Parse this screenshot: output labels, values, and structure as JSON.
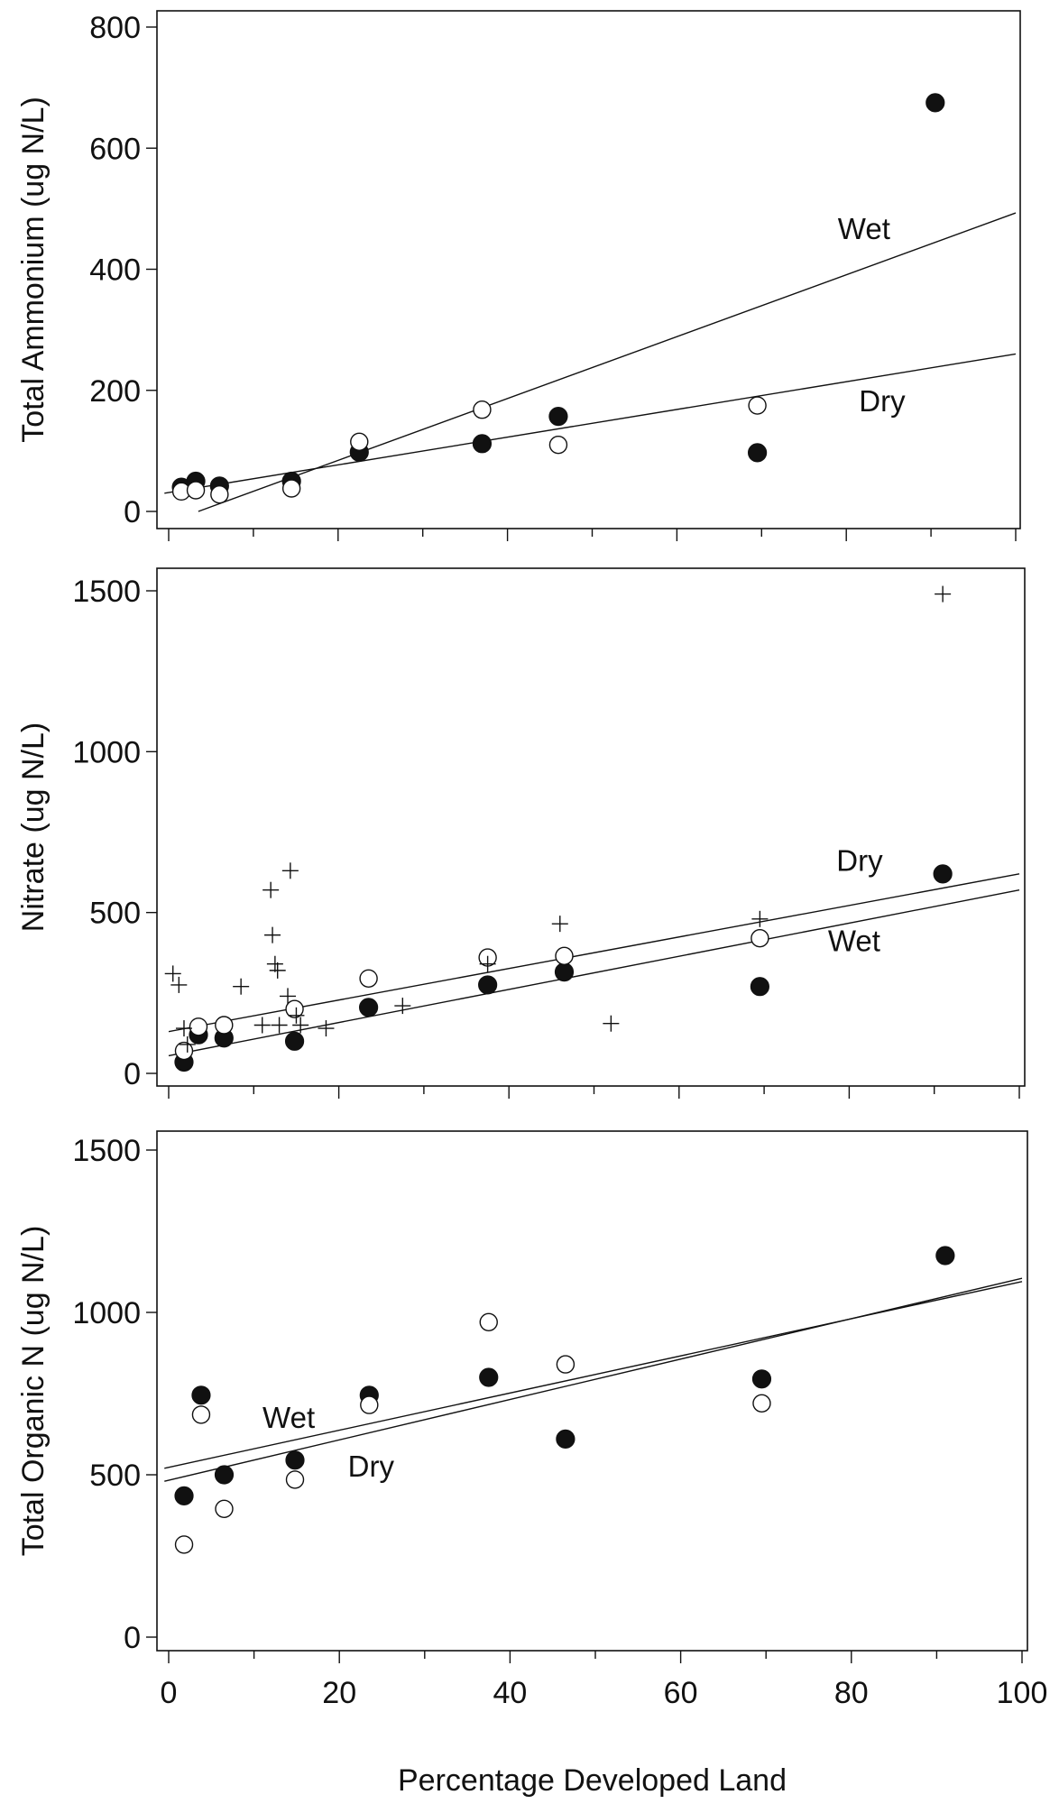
{
  "chart_data": [
    {
      "type": "scatter",
      "ylabel": "Total Ammonium  (ug N/L)",
      "xlim": [
        0,
        100
      ],
      "ylim": [
        0,
        800
      ],
      "xticks": [
        0,
        20,
        40,
        60,
        80,
        100
      ],
      "yticks": [
        0,
        200,
        400,
        600,
        800
      ],
      "ytick_labels": [
        "0",
        "200",
        "400",
        "600",
        "800"
      ],
      "show_x_tick_labels": false,
      "series": [
        {
          "style": "filled",
          "points": [
            [
              1.5,
              40
            ],
            [
              3.2,
              50
            ],
            [
              6,
              42
            ],
            [
              14.5,
              50
            ],
            [
              22.5,
              98
            ],
            [
              37,
              112
            ],
            [
              46,
              157
            ],
            [
              69.5,
              97
            ],
            [
              90.5,
              675
            ]
          ]
        },
        {
          "style": "open",
          "points": [
            [
              1.5,
              33
            ],
            [
              3.2,
              35
            ],
            [
              6,
              28
            ],
            [
              14.5,
              38
            ],
            [
              22.5,
              115
            ],
            [
              37,
              168
            ],
            [
              46,
              110
            ],
            [
              69.5,
              175
            ]
          ]
        }
      ],
      "fits": [
        {
          "label": "Wet",
          "from": [
            3.5,
            0
          ],
          "to": [
            100,
            493
          ]
        },
        {
          "label": "Dry",
          "from": [
            -0.5,
            30
          ],
          "to": [
            100,
            260
          ]
        }
      ],
      "annotations": [
        {
          "text": "Wet",
          "x": 79,
          "y": 450
        },
        {
          "text": "Dry",
          "x": 81.5,
          "y": 165
        }
      ]
    },
    {
      "type": "scatter",
      "ylabel": "Nitrate  (ug N/L)",
      "xlim": [
        0,
        100
      ],
      "ylim": [
        0,
        1500
      ],
      "xticks": [
        0,
        20,
        40,
        60,
        80,
        100
      ],
      "yticks": [
        0,
        500,
        1000,
        1500
      ],
      "ytick_labels": [
        "0",
        "500",
        "1000",
        "1500"
      ],
      "show_x_tick_labels": false,
      "series": [
        {
          "style": "filled",
          "points": [
            [
              1.8,
              35
            ],
            [
              3.5,
              120
            ],
            [
              6.5,
              110
            ],
            [
              14.8,
              100
            ],
            [
              23.5,
              205
            ],
            [
              37.5,
              275
            ],
            [
              46.5,
              315
            ],
            [
              69.5,
              270
            ],
            [
              91,
              620
            ]
          ]
        },
        {
          "style": "open",
          "points": [
            [
              1.8,
              70
            ],
            [
              3.5,
              145
            ],
            [
              6.5,
              150
            ],
            [
              14.8,
              200
            ],
            [
              23.5,
              295
            ],
            [
              37.5,
              360
            ],
            [
              46.5,
              365
            ],
            [
              69.5,
              420
            ]
          ]
        },
        {
          "style": "plus",
          "points": [
            [
              0.5,
              310
            ],
            [
              1.2,
              275
            ],
            [
              1.8,
              140
            ],
            [
              2.2,
              90
            ],
            [
              8.5,
              270
            ],
            [
              11,
              150
            ],
            [
              12,
              570
            ],
            [
              12.2,
              430
            ],
            [
              12.5,
              340
            ],
            [
              12.8,
              320
            ],
            [
              13,
              150
            ],
            [
              14,
              240
            ],
            [
              14.3,
              630
            ],
            [
              15,
              180
            ],
            [
              15.5,
              150
            ],
            [
              18.5,
              140
            ],
            [
              27.5,
              210
            ],
            [
              37.5,
              340
            ],
            [
              46,
              465
            ],
            [
              52,
              155
            ],
            [
              69.5,
              480
            ],
            [
              91,
              1490
            ]
          ]
        }
      ],
      "fits": [
        {
          "label": "Dry",
          "from": [
            0,
            130
          ],
          "to": [
            100,
            620
          ]
        },
        {
          "label": "Wet",
          "from": [
            0,
            55
          ],
          "to": [
            100,
            570
          ]
        }
      ],
      "annotations": [
        {
          "text": "Dry",
          "x": 78.5,
          "y": 630
        },
        {
          "text": "Wet",
          "x": 77.5,
          "y": 380
        }
      ]
    },
    {
      "type": "scatter",
      "xlabel": "Percentage  Developed  Land",
      "ylabel": "Total Organic N  (ug N/L)",
      "xlim": [
        0,
        100
      ],
      "ylim": [
        0,
        1500
      ],
      "xticks": [
        0,
        20,
        40,
        60,
        80,
        100
      ],
      "xtick_labels": [
        "0",
        "20",
        "40",
        "60",
        "80",
        "100"
      ],
      "yticks": [
        0,
        500,
        1000,
        1500
      ],
      "ytick_labels": [
        "0",
        "500",
        "1000",
        "1500"
      ],
      "show_x_tick_labels": true,
      "series": [
        {
          "style": "filled",
          "points": [
            [
              1.8,
              435
            ],
            [
              3.8,
              745
            ],
            [
              6.5,
              500
            ],
            [
              14.8,
              545
            ],
            [
              23.5,
              745
            ],
            [
              37.5,
              800
            ],
            [
              46.5,
              610
            ],
            [
              69.5,
              795
            ],
            [
              91,
              1175
            ]
          ]
        },
        {
          "style": "open",
          "points": [
            [
              1.8,
              285
            ],
            [
              3.8,
              685
            ],
            [
              6.5,
              395
            ],
            [
              14.8,
              485
            ],
            [
              23.5,
              715
            ],
            [
              37.5,
              970
            ],
            [
              46.5,
              840
            ],
            [
              69.5,
              720
            ]
          ]
        }
      ],
      "fits": [
        {
          "label": "Wet",
          "from": [
            -0.5,
            520
          ],
          "to": [
            100,
            1095
          ]
        },
        {
          "label": "Dry",
          "from": [
            -0.5,
            480
          ],
          "to": [
            100,
            1105
          ]
        }
      ],
      "annotations": [
        {
          "text": "Wet",
          "x": 11,
          "y": 645
        },
        {
          "text": "Dry",
          "x": 21,
          "y": 495
        }
      ]
    }
  ]
}
